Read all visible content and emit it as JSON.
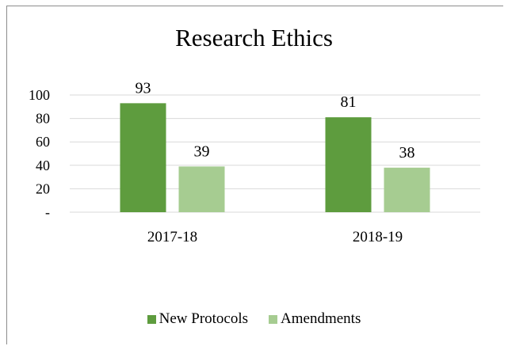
{
  "chart_data": {
    "type": "bar",
    "title": "Research Ethics",
    "categories": [
      "2017-18",
      "2018-19"
    ],
    "series": [
      {
        "name": "New Protocols",
        "values": [
          93,
          81
        ],
        "color": "#5e9c3e"
      },
      {
        "name": "Amendments",
        "values": [
          39,
          38
        ],
        "color": "#a6cc91"
      }
    ],
    "y_ticks": [
      {
        "value": 0,
        "label": "-"
      },
      {
        "value": 20,
        "label": "20"
      },
      {
        "value": 40,
        "label": "40"
      },
      {
        "value": 60,
        "label": "60"
      },
      {
        "value": 80,
        "label": "80"
      },
      {
        "value": 100,
        "label": "100"
      }
    ],
    "ylim": [
      0,
      100
    ],
    "grid": true,
    "legend_position": "bottom",
    "gridline_color": "#d9d9d9"
  }
}
